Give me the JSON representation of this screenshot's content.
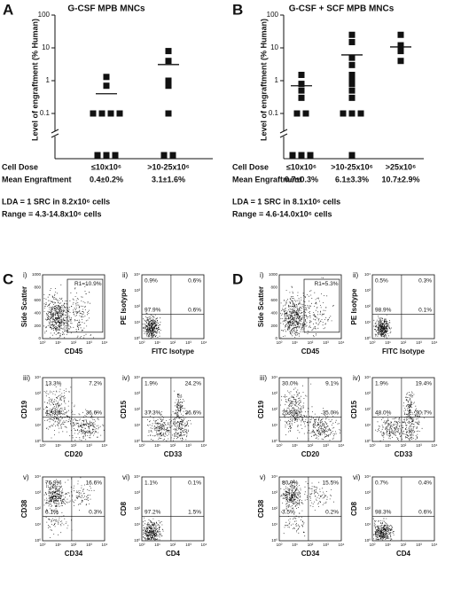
{
  "chart_data": [
    {
      "type": "scatter",
      "letter": "A",
      "title": "G-CSF MPB MNCs",
      "y_label": "Level of engraftment (% Human)",
      "categories": [
        "≤10x10⁶",
        ">10-25x10⁶"
      ],
      "values": [
        [
          1.3,
          0.7,
          0.1,
          0.1,
          0.1,
          0.1,
          0,
          0,
          0
        ],
        [
          8,
          4,
          1,
          0.7,
          0.1,
          0,
          0
        ]
      ],
      "means": [
        0.4,
        3.1
      ],
      "ylim": [
        0.04,
        100
      ],
      "yticks": [
        0.1,
        1,
        10,
        100
      ],
      "log_y": true,
      "color": "#111111",
      "dose_heading": "Cell Dose",
      "mean_heading": "Mean Engraftment",
      "mean_labels": [
        "0.4±0.2%",
        "3.1±1.6%"
      ],
      "lda": "LDA = 1 SRC in 8.2x10⁶ cells",
      "range": "Range = 4.3-14.8x10⁶ cells"
    },
    {
      "type": "scatter",
      "letter": "B",
      "title": "G-CSF + SCF MPB MNCs",
      "y_label": "Level of engraftment (% Human)",
      "categories": [
        "≤10x10⁶",
        ">10-25x10⁶",
        ">25x10⁶"
      ],
      "values": [
        [
          1.5,
          0.8,
          0.5,
          0.3,
          0.1,
          0.1,
          0,
          0,
          0
        ],
        [
          25,
          15,
          5,
          3,
          1.5,
          1,
          0.8,
          0.5,
          0.3,
          0.1,
          0.1,
          0.1,
          0
        ],
        [
          25,
          12,
          8,
          4
        ]
      ],
      "means": [
        0.7,
        6.1,
        10.7
      ],
      "ylim": [
        0.04,
        100
      ],
      "yticks": [
        0.1,
        1,
        10,
        100
      ],
      "log_y": true,
      "color": "#111111",
      "dose_heading": "Cell Dose",
      "mean_heading": "Mean Engraftment",
      "mean_labels": [
        "0.7±0.3%",
        "6.1±3.3%",
        "10.7±2.9%"
      ],
      "lda": "LDA = 1 SRC in 8.1x10⁶ cells",
      "range": "Range = 4.6-14.0x10⁶ cells"
    }
  ],
  "decades": [
    "10⁰",
    "10¹",
    "10²",
    "10³",
    "10⁴"
  ],
  "scatter_ticks": [
    0,
    200,
    400,
    600,
    800,
    1000
  ],
  "flow": [
    {
      "letter": "C",
      "plots": [
        {
          "numeral": "i)",
          "x_label": "CD45",
          "y_label": "Side Scatter",
          "gate": "R1=10.9%"
        },
        {
          "numeral": "ii)",
          "x_label": "FITC Isotype",
          "y_label": "PE Isotype",
          "quadrants": [
            "0.9%",
            "0.6%",
            "97.9%",
            "0.6%"
          ]
        },
        {
          "numeral": "iii)",
          "x_label": "CD20",
          "y_label": "CD19",
          "quadrants": [
            "13.3%",
            "7.2%",
            "42.9%",
            "36.6%"
          ]
        },
        {
          "numeral": "iv)",
          "x_label": "CD33",
          "y_label": "CD15",
          "quadrants": [
            "1.9%",
            "24.2%",
            "37.3%",
            "36.6%"
          ]
        },
        {
          "numeral": "v)",
          "x_label": "CD34",
          "y_label": "CD38",
          "quadrants": [
            "76.9%",
            "16.6%",
            "6.1%",
            "0.3%"
          ]
        },
        {
          "numeral": "vi)",
          "x_label": "CD4",
          "y_label": "CD8",
          "quadrants": [
            "1.1%",
            "0.1%",
            "97.2%",
            "1.5%"
          ]
        }
      ]
    },
    {
      "letter": "D",
      "plots": [
        {
          "numeral": "i)",
          "x_label": "CD45",
          "y_label": "Side Scatter",
          "gate": "R1=5.3%"
        },
        {
          "numeral": "ii)",
          "x_label": "FITC Isotype",
          "y_label": "PE Isotype",
          "quadrants": [
            "0.5%",
            "0.3%",
            "98.9%",
            "0.1%"
          ]
        },
        {
          "numeral": "iii)",
          "x_label": "CD20",
          "y_label": "CD19",
          "quadrants": [
            "30.0%",
            "9.1%",
            "25.9%",
            "35.0%"
          ]
        },
        {
          "numeral": "iv)",
          "x_label": "CD33",
          "y_label": "CD15",
          "quadrants": [
            "1.9%",
            "19.4%",
            "48.0%",
            "30.7%"
          ]
        },
        {
          "numeral": "v)",
          "x_label": "CD34",
          "y_label": "CD38",
          "quadrants": [
            "80.9%",
            "15.5%",
            "3.5%",
            "0.2%"
          ]
        },
        {
          "numeral": "vi)",
          "x_label": "CD4",
          "y_label": "CD8",
          "quadrants": [
            "0.7%",
            "0.4%",
            "98.3%",
            "0.6%"
          ]
        }
      ]
    }
  ]
}
